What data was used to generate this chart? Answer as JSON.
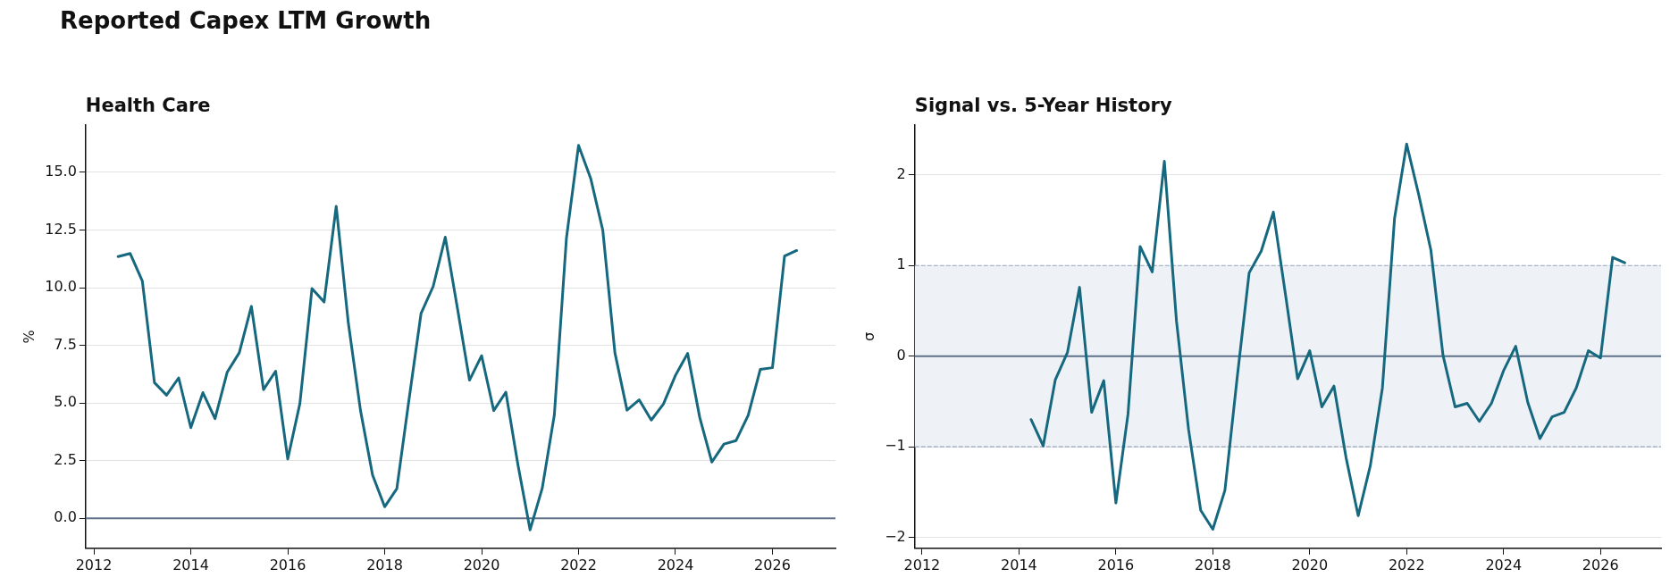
{
  "chart_data": [
    {
      "type": "line",
      "title": "Reported Capex LTM Growth",
      "subtitle": "Health Care",
      "ylabel": "%",
      "x": [
        2012.5,
        2012.75,
        2013,
        2013.25,
        2013.5,
        2013.75,
        2014,
        2014.25,
        2014.5,
        2014.75,
        2015,
        2015.25,
        2015.5,
        2015.75,
        2016,
        2016.25,
        2016.5,
        2016.75,
        2017,
        2017.25,
        2017.5,
        2017.75,
        2018,
        2018.25,
        2018.5,
        2018.75,
        2019,
        2019.25,
        2019.5,
        2019.75,
        2020,
        2020.25,
        2020.5,
        2020.75,
        2021,
        2021.25,
        2021.5,
        2021.75,
        2022,
        2022.25,
        2022.5,
        2022.75,
        2023,
        2023.25,
        2023.5,
        2023.75,
        2024,
        2024.25,
        2024.5,
        2024.75,
        2025,
        2025.25,
        2025.5,
        2025.75,
        2026,
        2026.25,
        2026.5
      ],
      "series": [
        {
          "color": "#16687f",
          "values": [
            11.35,
            11.48,
            10.29,
            5.88,
            5.34,
            6.09,
            3.93,
            5.45,
            4.32,
            6.33,
            7.18,
            9.19,
            5.58,
            6.38,
            2.57,
            4.97,
            9.96,
            9.38,
            13.53,
            8.47,
            4.69,
            1.88,
            0.5,
            1.28,
            5.12,
            8.88,
            10.05,
            12.19,
            9.12,
            5.99,
            7.05,
            4.67,
            5.47,
            2.31,
            -0.5,
            1.3,
            4.47,
            12.15,
            16.17,
            14.74,
            12.49,
            7.18,
            4.69,
            5.14,
            4.26,
            4.95,
            6.2,
            7.15,
            4.37,
            2.44,
            3.22,
            3.37,
            4.47,
            6.46,
            6.53,
            11.37,
            11.61
          ]
        }
      ],
      "xlim": [
        2011.83,
        2027.3
      ],
      "xticks": [
        2012,
        2014,
        2016,
        2018,
        2020,
        2022,
        2024,
        2026
      ],
      "ylim": [
        -1.3,
        17.05
      ],
      "yticks": [
        {
          "value": 0,
          "label": "0.0"
        },
        {
          "value": 2.5,
          "label": "2.5"
        },
        {
          "value": 5,
          "label": "5.0"
        },
        {
          "value": 7.5,
          "label": "7.5"
        },
        {
          "value": 10,
          "label": "10.0"
        },
        {
          "value": 12.5,
          "label": "12.5"
        },
        {
          "value": 15,
          "label": "15.0"
        }
      ],
      "ref_lines": [
        {
          "axis": "y",
          "value": 0,
          "color": "#5e7087",
          "line_style": "solid"
        }
      ],
      "grid": "y",
      "legend": false,
      "marker": "none",
      "line_style": "solid"
    },
    {
      "type": "line",
      "title": "Signal vs. 5-Year History",
      "ylabel": "σ",
      "x": [
        2014.25,
        2014.5,
        2014.75,
        2015,
        2015.25,
        2015.5,
        2015.75,
        2016,
        2016.25,
        2016.5,
        2016.75,
        2017,
        2017.25,
        2017.5,
        2017.75,
        2018,
        2018.25,
        2018.5,
        2018.75,
        2019,
        2019.25,
        2019.5,
        2019.75,
        2020,
        2020.25,
        2020.5,
        2020.75,
        2021,
        2021.25,
        2021.5,
        2021.75,
        2022,
        2022.25,
        2022.5,
        2022.75,
        2023,
        2023.25,
        2023.5,
        2023.75,
        2024,
        2024.25,
        2024.5,
        2024.75,
        2025,
        2025.25,
        2025.5,
        2025.75,
        2026,
        2026.25,
        2026.5
      ],
      "series": [
        {
          "color": "#16687f",
          "values": [
            -0.7,
            -0.99,
            -0.26,
            0.04,
            0.76,
            -0.62,
            -0.27,
            -1.62,
            -0.64,
            1.21,
            0.93,
            2.15,
            0.39,
            -0.81,
            -1.7,
            -1.91,
            -1.48,
            -0.25,
            0.92,
            1.16,
            1.59,
            0.68,
            -0.25,
            0.06,
            -0.56,
            -0.33,
            -1.12,
            -1.76,
            -1.21,
            -0.35,
            1.52,
            2.34,
            1.78,
            1.17,
            0.01,
            -0.56,
            -0.52,
            -0.72,
            -0.52,
            -0.16,
            0.11,
            -0.51,
            -0.91,
            -0.67,
            -0.62,
            -0.35,
            0.06,
            -0.02,
            1.09,
            1.03
          ]
        }
      ],
      "xlim": [
        2011.85,
        2027.25
      ],
      "xticks": [
        2012,
        2014,
        2016,
        2018,
        2020,
        2022,
        2024,
        2026
      ],
      "ylim": [
        -2.12,
        2.55
      ],
      "yticks": [
        {
          "value": -2,
          "label": "−2"
        },
        {
          "value": -1,
          "label": "−1"
        },
        0,
        1,
        2
      ],
      "bands": [
        {
          "axis": "y",
          "from": -1,
          "to": 1,
          "color": "#eef2f7"
        }
      ],
      "ref_lines": [
        {
          "axis": "y",
          "value": 0,
          "color": "#5e7087",
          "line_style": "solid"
        }
      ],
      "grid": "y",
      "legend": false,
      "marker": "none",
      "line_style": "solid"
    }
  ]
}
